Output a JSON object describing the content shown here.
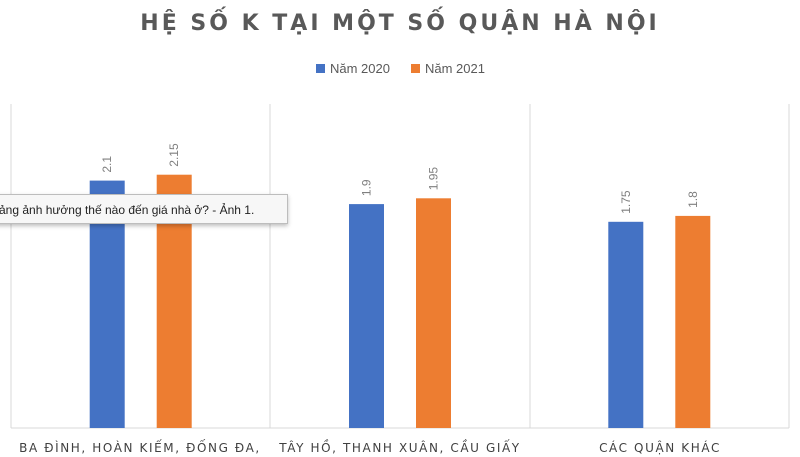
{
  "chart_data": {
    "type": "bar",
    "title": "HỆ SỐ K TẠI MỘT SỐ QUẬN HÀ NỘI",
    "categories": [
      "BA ĐÌNH, HOÀN KIẾM, ĐỐNG ĐA,",
      "TÂY HỒ, THANH XUÂN, CẦU GIẤY",
      "CÁC QUẬN KHÁC"
    ],
    "series": [
      {
        "name": "Năm 2020",
        "values": [
          2.1,
          1.9,
          1.75
        ]
      },
      {
        "name": "Năm 2021",
        "values": [
          2.15,
          1.95,
          1.8
        ]
      }
    ],
    "value_labels": [
      [
        "2.1",
        "1.9",
        "1.75"
      ],
      [
        "2.15",
        "1.95",
        "1.8"
      ]
    ],
    "ylim": [
      0,
      2.75
    ],
    "legend": "top-center",
    "grid": false,
    "colors": [
      "#4472C4",
      "#ED7D31"
    ]
  },
  "tooltip": {
    "text": "ảng ảnh hưởng thế nào đến giá nhà ở? - Ảnh 1."
  }
}
